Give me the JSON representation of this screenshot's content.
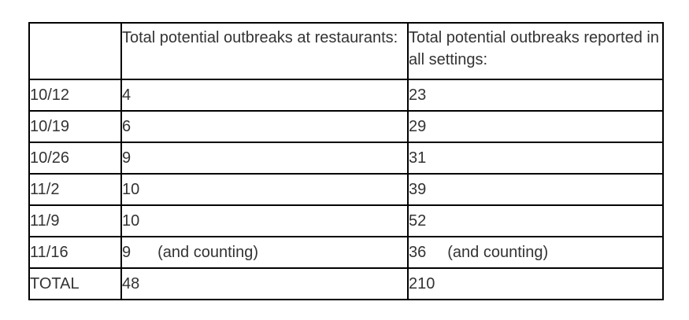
{
  "table": {
    "headers": [
      "",
      "Total potential outbreaks at restaurants:",
      "Total potential outbreaks reported in all settings:"
    ],
    "rows": [
      {
        "date": "10/12",
        "restaurants": "4",
        "restaurants_note": "",
        "all_settings": "23",
        "all_settings_note": ""
      },
      {
        "date": "10/19",
        "restaurants": "6",
        "restaurants_note": "",
        "all_settings": "29",
        "all_settings_note": ""
      },
      {
        "date": "10/26",
        "restaurants": "9",
        "restaurants_note": "",
        "all_settings": "31",
        "all_settings_note": ""
      },
      {
        "date": "11/2",
        "restaurants": "10",
        "restaurants_note": "",
        "all_settings": "39",
        "all_settings_note": ""
      },
      {
        "date": "11/9",
        "restaurants": "10",
        "restaurants_note": "",
        "all_settings": "52",
        "all_settings_note": ""
      },
      {
        "date": "11/16",
        "restaurants": "9",
        "restaurants_note": "(and counting)",
        "all_settings": "36",
        "all_settings_note": "(and counting)"
      }
    ],
    "total": {
      "label": "TOTAL",
      "restaurants": "48",
      "all_settings": "210"
    }
  }
}
